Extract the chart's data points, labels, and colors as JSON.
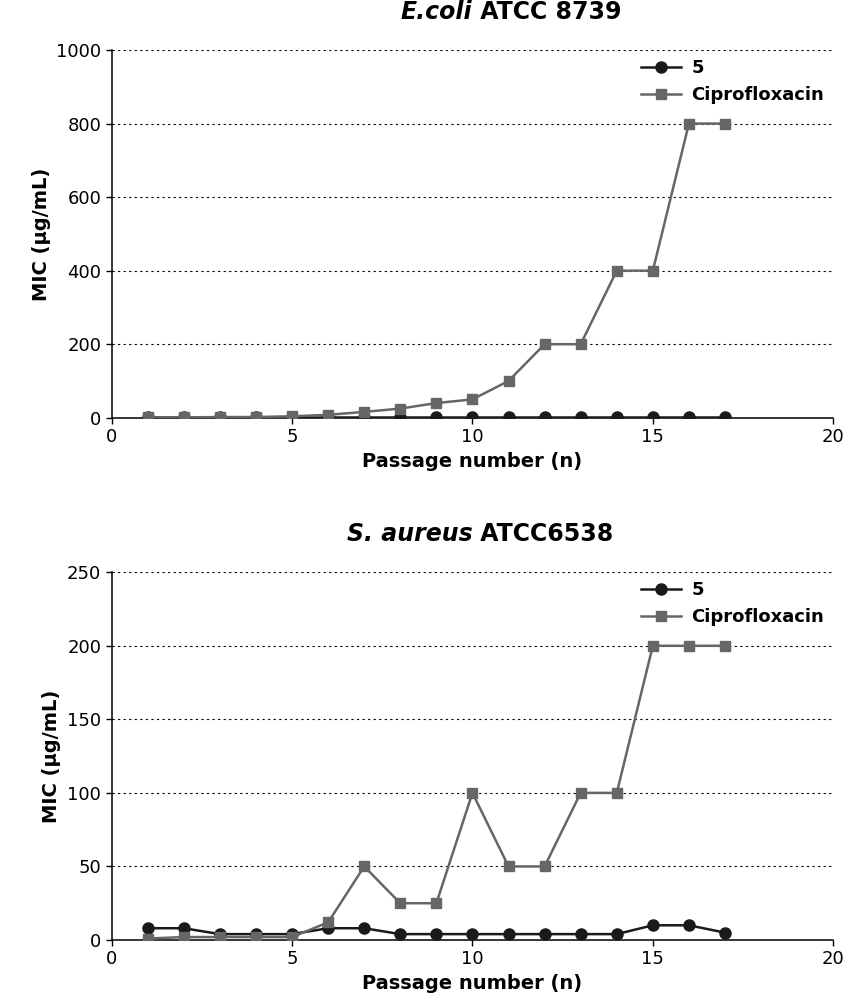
{
  "ecoli": {
    "title_italic": "E.coli",
    "title_normal": " ATCC 8739",
    "xlabel": "Passage number (n)",
    "ylabel": "MIC (μg/mL)",
    "xlim": [
      0,
      20
    ],
    "ylim": [
      0,
      1000
    ],
    "yticks": [
      0,
      200,
      400,
      600,
      800,
      1000
    ],
    "xticks": [
      0,
      5,
      10,
      15,
      20
    ],
    "series5_x": [
      1,
      2,
      3,
      4,
      5,
      6,
      7,
      8,
      9,
      10,
      11,
      12,
      13,
      14,
      15,
      16,
      17
    ],
    "series5_y": [
      2,
      2,
      2,
      2,
      2,
      2,
      2,
      2,
      2,
      2,
      2,
      2,
      2,
      2,
      2,
      2,
      2
    ],
    "cipro_x": [
      1,
      2,
      3,
      4,
      5,
      6,
      7,
      8,
      9,
      10,
      11,
      12,
      13,
      14,
      15,
      16,
      17
    ],
    "cipro_y": [
      1,
      1,
      2,
      2,
      4,
      8,
      16,
      25,
      40,
      50,
      100,
      200,
      200,
      400,
      400,
      800,
      800
    ]
  },
  "saureus": {
    "title_italic": "S. aureus",
    "title_normal": " ATCC6538",
    "xlabel": "Passage number (n)",
    "ylabel": "MIC (μg/mL)",
    "xlim": [
      0,
      20
    ],
    "ylim": [
      0,
      250
    ],
    "yticks": [
      0,
      50,
      100,
      150,
      200,
      250
    ],
    "xticks": [
      0,
      5,
      10,
      15,
      20
    ],
    "series5_x": [
      1,
      2,
      3,
      4,
      5,
      6,
      7,
      8,
      9,
      10,
      11,
      12,
      13,
      14,
      15,
      16,
      17
    ],
    "series5_y": [
      8,
      8,
      4,
      4,
      4,
      8,
      8,
      4,
      4,
      4,
      4,
      4,
      4,
      4,
      10,
      10,
      5
    ],
    "cipro_x": [
      1,
      2,
      3,
      4,
      5,
      6,
      7,
      8,
      9,
      10,
      11,
      12,
      13,
      14,
      15,
      16,
      17
    ],
    "cipro_y": [
      1,
      2,
      2,
      2,
      2,
      12,
      50,
      25,
      25,
      100,
      50,
      50,
      100,
      100,
      200,
      200,
      200
    ]
  },
  "series5_color": "#1a1a1a",
  "cipro_color": "#666666",
  "line_width": 1.8,
  "marker_size_circle": 8,
  "marker_size_square": 7,
  "legend_label_5": "5",
  "legend_label_cipro": "Ciprofloxacin",
  "background_color": "#ffffff",
  "grid_color": "#000000",
  "title_fontsize": 17,
  "axis_label_fontsize": 14,
  "tick_fontsize": 13,
  "legend_fontsize": 13
}
